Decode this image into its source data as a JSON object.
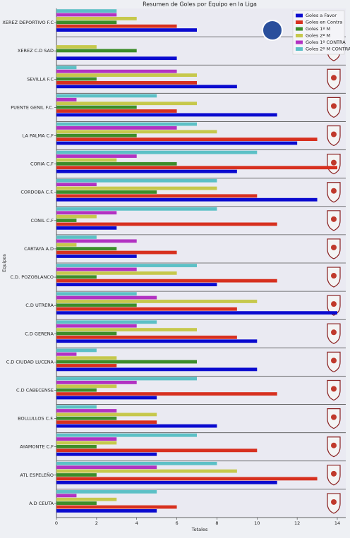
{
  "chart_data": {
    "type": "barh",
    "title": "Resumen de Goles por Equipo en la Liga",
    "xlabel": "Totales",
    "ylabel": "Equipos",
    "categories": [
      "XEREZ DEPORTIVO F.C",
      "XEREZ C.D SAD",
      "SEVILLA F.C",
      "PUENTE GENIL F.C.",
      "LA PALMA C.F",
      "CORIA C.F",
      "CORDOBA C.F.",
      "CONIL C.F",
      "CARTAYA A.D",
      "C.D. POZOBLANCO",
      "C.D UTRERA",
      "C.D GERENA",
      "C.D CIUDAD LUCENA",
      "C.D CABECENSE",
      "BOLLULLOS C.F.",
      "AYAMONTE C.F",
      "ATL ESPELEÑO",
      "A.D CEUTA"
    ],
    "series": [
      {
        "name": "Goles a Favor",
        "color": "#0a0acf",
        "values": [
          7,
          6,
          9,
          11,
          12,
          9,
          13,
          3,
          4,
          8,
          14,
          10,
          10,
          5,
          8,
          5,
          11,
          5
        ]
      },
      {
        "name": "Goles en Contra",
        "color": "#d7301f",
        "values": [
          6,
          0,
          7,
          6,
          13,
          14,
          10,
          11,
          6,
          11,
          9,
          9,
          3,
          11,
          5,
          10,
          13,
          6
        ]
      },
      {
        "name": "Goles 1º M",
        "color": "#3c8d2a",
        "values": [
          3,
          4,
          2,
          4,
          4,
          6,
          5,
          1,
          3,
          2,
          4,
          3,
          7,
          2,
          3,
          2,
          2,
          2
        ]
      },
      {
        "name": "Goles 2º M",
        "color": "#c6c84c",
        "values": [
          4,
          2,
          7,
          7,
          8,
          3,
          8,
          2,
          1,
          6,
          10,
          7,
          3,
          3,
          5,
          3,
          9,
          3
        ]
      },
      {
        "name": "Goles 1º CONTRA",
        "color": "#b232c2",
        "values": [
          3,
          0,
          6,
          1,
          6,
          4,
          2,
          3,
          4,
          4,
          5,
          4,
          1,
          4,
          3,
          3,
          5,
          1
        ]
      },
      {
        "name": "Goles 2º M CONTRA",
        "color": "#5cc0c6",
        "values": [
          3,
          0,
          1,
          5,
          7,
          10,
          8,
          8,
          2,
          7,
          4,
          5,
          2,
          7,
          2,
          7,
          8,
          5
        ]
      }
    ],
    "xlim": [
      0,
      14
    ],
    "xticks": [
      0,
      2,
      4,
      6,
      8,
      10,
      12,
      14
    ],
    "legend": "upper right"
  }
}
